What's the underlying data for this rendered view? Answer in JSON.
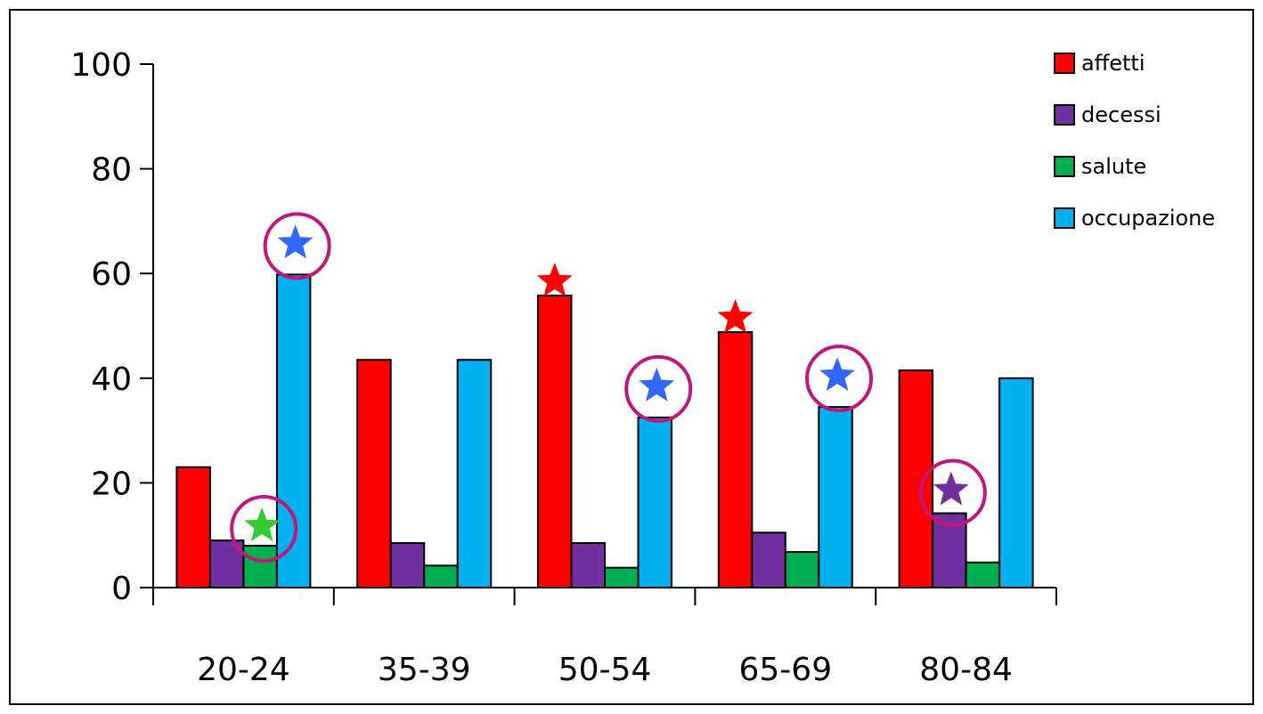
{
  "chart_data": {
    "type": "bar",
    "categories": [
      "20-24",
      "35-39",
      "50-54",
      "65-69",
      "80-84"
    ],
    "series": [
      {
        "name": "affetti",
        "color": "#ff0000",
        "values": [
          23,
          43.5,
          55.8,
          48.8,
          41.5
        ]
      },
      {
        "name": "decessi",
        "color": "#7030a0",
        "values": [
          9,
          8.5,
          8.5,
          10.5,
          14.2
        ]
      },
      {
        "name": "salute",
        "color": "#00b050",
        "values": [
          8,
          4.2,
          3.8,
          6.8,
          4.8
        ]
      },
      {
        "name": "occupazione",
        "color": "#00b0f0",
        "values": [
          59.8,
          43.5,
          32.5,
          34.5,
          40
        ]
      }
    ],
    "ylim": [
      0,
      100
    ],
    "yticks": [
      0,
      20,
      40,
      60,
      80,
      100
    ],
    "title": "",
    "xlabel": "",
    "ylabel": "",
    "legend": "top-right",
    "grid": false,
    "annotations": [
      {
        "category": "20-24",
        "series": "salute",
        "marker": "star",
        "color": "#33cc33",
        "circled": true
      },
      {
        "category": "20-24",
        "series": "occupazione",
        "marker": "star",
        "color": "#3366ff",
        "circled": true
      },
      {
        "category": "50-54",
        "series": "affetti",
        "marker": "star",
        "color": "#ff0000",
        "circled": false
      },
      {
        "category": "50-54",
        "series": "occupazione",
        "marker": "star",
        "color": "#3366ff",
        "circled": true
      },
      {
        "category": "65-69",
        "series": "affetti",
        "marker": "star",
        "color": "#ff0000",
        "circled": false
      },
      {
        "category": "65-69",
        "series": "occupazione",
        "marker": "star",
        "color": "#3366ff",
        "circled": true
      },
      {
        "category": "80-84",
        "series": "decessi",
        "marker": "star",
        "color": "#7030a0",
        "circled": true
      }
    ],
    "circle_color": "#c0187a"
  }
}
